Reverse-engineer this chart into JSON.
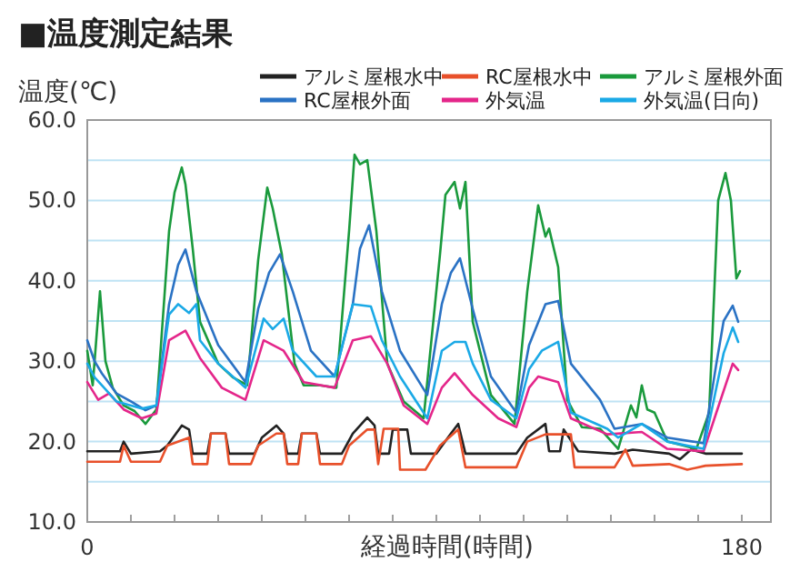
{
  "chart_data": {
    "type": "line",
    "title": "■温度測定結果",
    "ylabel": "温度(℃)",
    "xlabel": "経過時間(時間)",
    "xlim": [
      0,
      188
    ],
    "ylim": [
      10,
      60
    ],
    "xticks": [
      0,
      {
        "value": 12,
        "label": null
      },
      {
        "value": 24,
        "label": null
      },
      {
        "value": 36,
        "label": null
      },
      {
        "value": 48,
        "label": null
      },
      {
        "value": 60,
        "label": null
      },
      {
        "value": 72,
        "label": null
      },
      {
        "value": 84,
        "label": null
      },
      {
        "value": 96,
        "label": null
      },
      {
        "value": 108,
        "label": null
      },
      {
        "value": 120,
        "label": null
      },
      {
        "value": 132,
        "label": null
      },
      {
        "value": 144,
        "label": null
      },
      {
        "value": 156,
        "label": null
      },
      {
        "value": 168,
        "label": null
      },
      180
    ],
    "yticks": [
      {
        "value": 10,
        "label": "10.0"
      },
      {
        "value": 15,
        "label": null
      },
      {
        "value": 20,
        "label": "20.0"
      },
      {
        "value": 25,
        "label": null
      },
      {
        "value": 30,
        "label": "30.0"
      },
      {
        "value": 35,
        "label": null
      },
      {
        "value": 40,
        "label": "40.0"
      },
      {
        "value": 45,
        "label": null
      },
      {
        "value": 50,
        "label": "50.0"
      },
      {
        "value": 55,
        "label": null
      },
      {
        "value": 60,
        "label": "60.0"
      }
    ],
    "grid": "y",
    "legend": "top",
    "marker": "none",
    "line_style": "solid",
    "series": [
      {
        "name": "アルミ屋根水中",
        "color": "#222222",
        "x": [
          0,
          9,
          10,
          12,
          20,
          22,
          26,
          28,
          29,
          33,
          34,
          38,
          39,
          46,
          48,
          52,
          54,
          55,
          58,
          59,
          63,
          64,
          70,
          73,
          77,
          79,
          80,
          83,
          84,
          88,
          89,
          96,
          100,
          102,
          104,
          118,
          121,
          126,
          127,
          130,
          131,
          135,
          145,
          150,
          160,
          163,
          166,
          170,
          180
        ],
        "values": [
          18.8,
          18.8,
          20,
          18.5,
          18.8,
          19.5,
          22,
          21.5,
          18.5,
          18.5,
          21,
          21,
          18.5,
          18.5,
          20.5,
          22,
          21,
          18.5,
          18.5,
          21,
          21,
          18.5,
          18.5,
          21,
          23,
          22,
          18.5,
          18.5,
          21.5,
          21.5,
          18.5,
          18.5,
          21,
          22.2,
          18.5,
          18.5,
          20.5,
          22.2,
          18.8,
          18.8,
          21.5,
          18.8,
          18.5,
          19,
          18.5,
          17.8,
          19,
          18.5,
          18.5
        ]
      },
      {
        "name": "RC屋根水中",
        "color": "#e8502a",
        "x": [
          0,
          9,
          10,
          12,
          20,
          22,
          28,
          29,
          33,
          34,
          38,
          39,
          45,
          47,
          52,
          54,
          55,
          58,
          59,
          63,
          64,
          70,
          72,
          77,
          79,
          80,
          81.5,
          85.5,
          86,
          93,
          97,
          102,
          104,
          118,
          121,
          126,
          128,
          133,
          134,
          145,
          148,
          150,
          160,
          165,
          170,
          180
        ],
        "values": [
          17.5,
          17.5,
          19.5,
          17.5,
          17.5,
          19.5,
          20.5,
          17.2,
          17.2,
          21,
          21,
          17.2,
          17.2,
          19.5,
          21,
          21,
          17.2,
          17.2,
          21,
          21,
          17.2,
          17.2,
          19.5,
          21.5,
          21.5,
          17.2,
          21.6,
          21.6,
          16.5,
          16.5,
          19.5,
          21.5,
          16.8,
          16.8,
          20,
          20.9,
          20.9,
          20.9,
          16.8,
          16.8,
          19,
          17,
          17.2,
          16.5,
          17,
          17.2
        ]
      },
      {
        "name": "アルミ屋根外面",
        "color": "#1a9a3c",
        "x": [
          0,
          1.5,
          3.5,
          5,
          7,
          10,
          13,
          16,
          19,
          22.5,
          24,
          26,
          27,
          29,
          31,
          36,
          40,
          44,
          47,
          49.5,
          51,
          53.5,
          57,
          59.5,
          64,
          68.5,
          72,
          73.5,
          75,
          77,
          79.5,
          82.5,
          87,
          92.5,
          97,
          98.5,
          101,
          102.5,
          104,
          106,
          111,
          117.5,
          121,
          124,
          126,
          127,
          129.5,
          132,
          136,
          141,
          146,
          149.5,
          151,
          152.5,
          154,
          156,
          159.5,
          164,
          167.5,
          171,
          173.5,
          175.5,
          177,
          178.5,
          179.5
        ],
        "values": [
          31.3,
          27,
          38.7,
          30,
          26.7,
          24.5,
          23.8,
          22.2,
          24,
          46.2,
          51,
          54.1,
          52,
          44,
          34.9,
          29.7,
          28,
          27,
          42.6,
          51.6,
          49,
          43.3,
          29.7,
          27,
          27,
          26.7,
          46.2,
          55.7,
          54.5,
          55,
          46.2,
          29.7,
          25,
          22.9,
          43.3,
          50.7,
          52.3,
          49,
          52.3,
          34.9,
          25.8,
          22.2,
          38.7,
          49.4,
          45.5,
          46.5,
          41.7,
          25.2,
          21.8,
          21.6,
          19.1,
          24.5,
          23,
          27,
          24,
          23.6,
          20,
          19.5,
          19.1,
          23.6,
          50,
          53.4,
          50,
          40.3,
          41.2
        ]
      },
      {
        "name": "RC屋根外面",
        "color": "#2a72c4",
        "x": [
          0,
          2,
          4,
          8,
          12,
          16,
          19,
          22.5,
          25,
          27,
          30,
          36,
          43.5,
          47,
          50,
          53,
          56.5,
          61.5,
          68,
          73,
          75,
          77.5,
          81,
          86,
          93.5,
          97.5,
          100,
          102.5,
          106,
          111,
          118,
          121.5,
          126,
          129.5,
          133,
          141,
          145,
          152.5,
          159.5,
          169.5,
          173,
          175,
          177.5,
          179
        ],
        "values": [
          32.6,
          30,
          28.5,
          26,
          25,
          23.9,
          24.5,
          37.1,
          42,
          43.9,
          38.7,
          32,
          27.4,
          36.5,
          41,
          43.3,
          38.7,
          31.3,
          28.1,
          37,
          44,
          46.9,
          38.7,
          31.3,
          25.8,
          37.1,
          41,
          42.8,
          36.5,
          28.1,
          23.6,
          32,
          37.1,
          37.5,
          29.7,
          25.2,
          21.6,
          22.2,
          20.5,
          19.8,
          29.7,
          35,
          36.9,
          34.9
        ]
      },
      {
        "name": "外気温",
        "color": "#e4268a",
        "x": [
          0,
          3,
          6,
          10,
          15,
          19,
          22.5,
          27,
          31,
          37,
          43.5,
          48.5,
          54,
          59.5,
          68,
          73,
          78,
          82.5,
          87,
          93.5,
          97.5,
          101,
          106,
          113,
          118,
          121.5,
          124,
          129.5,
          133,
          143,
          152.5,
          159.5,
          169.5,
          173,
          177.5,
          179
        ],
        "values": [
          27.4,
          25.2,
          26,
          24,
          22.9,
          23.5,
          32.6,
          33.8,
          30.4,
          26.7,
          25.2,
          32.6,
          31.3,
          27.4,
          26.7,
          32.6,
          33.1,
          29.7,
          24.5,
          22.2,
          26.7,
          28.5,
          25.8,
          22.9,
          21.8,
          26.7,
          28.1,
          27.4,
          22.9,
          20.9,
          21.2,
          19.1,
          18.8,
          23.6,
          29.7,
          28.9
        ]
      },
      {
        "name": "外気温(日向)",
        "color": "#1aa9e6",
        "x": [
          0,
          2,
          4,
          8,
          15,
          19,
          22.5,
          25,
          28,
          30,
          31,
          36,
          43.5,
          48.5,
          51,
          54,
          56.5,
          63,
          68,
          73,
          78,
          81,
          86,
          93.5,
          97.5,
          101,
          104,
          106,
          111,
          118,
          121.5,
          125,
          129.5,
          133,
          143,
          146,
          152.5,
          159.5,
          169.5,
          173,
          175,
          177.5,
          179
        ],
        "values": [
          29.7,
          28,
          27,
          25,
          24.1,
          24.5,
          35.8,
          37.1,
          36,
          37.1,
          32.6,
          29.7,
          26.7,
          35.3,
          34,
          35.3,
          31.3,
          28.1,
          28.1,
          37.1,
          36.8,
          32.6,
          28.1,
          22.9,
          31.3,
          32.4,
          32.4,
          29.7,
          25.2,
          22.9,
          29,
          31.3,
          32.4,
          23.6,
          21.6,
          20.5,
          22.2,
          20,
          19.1,
          26.7,
          31,
          34.2,
          32.4
        ]
      }
    ]
  }
}
